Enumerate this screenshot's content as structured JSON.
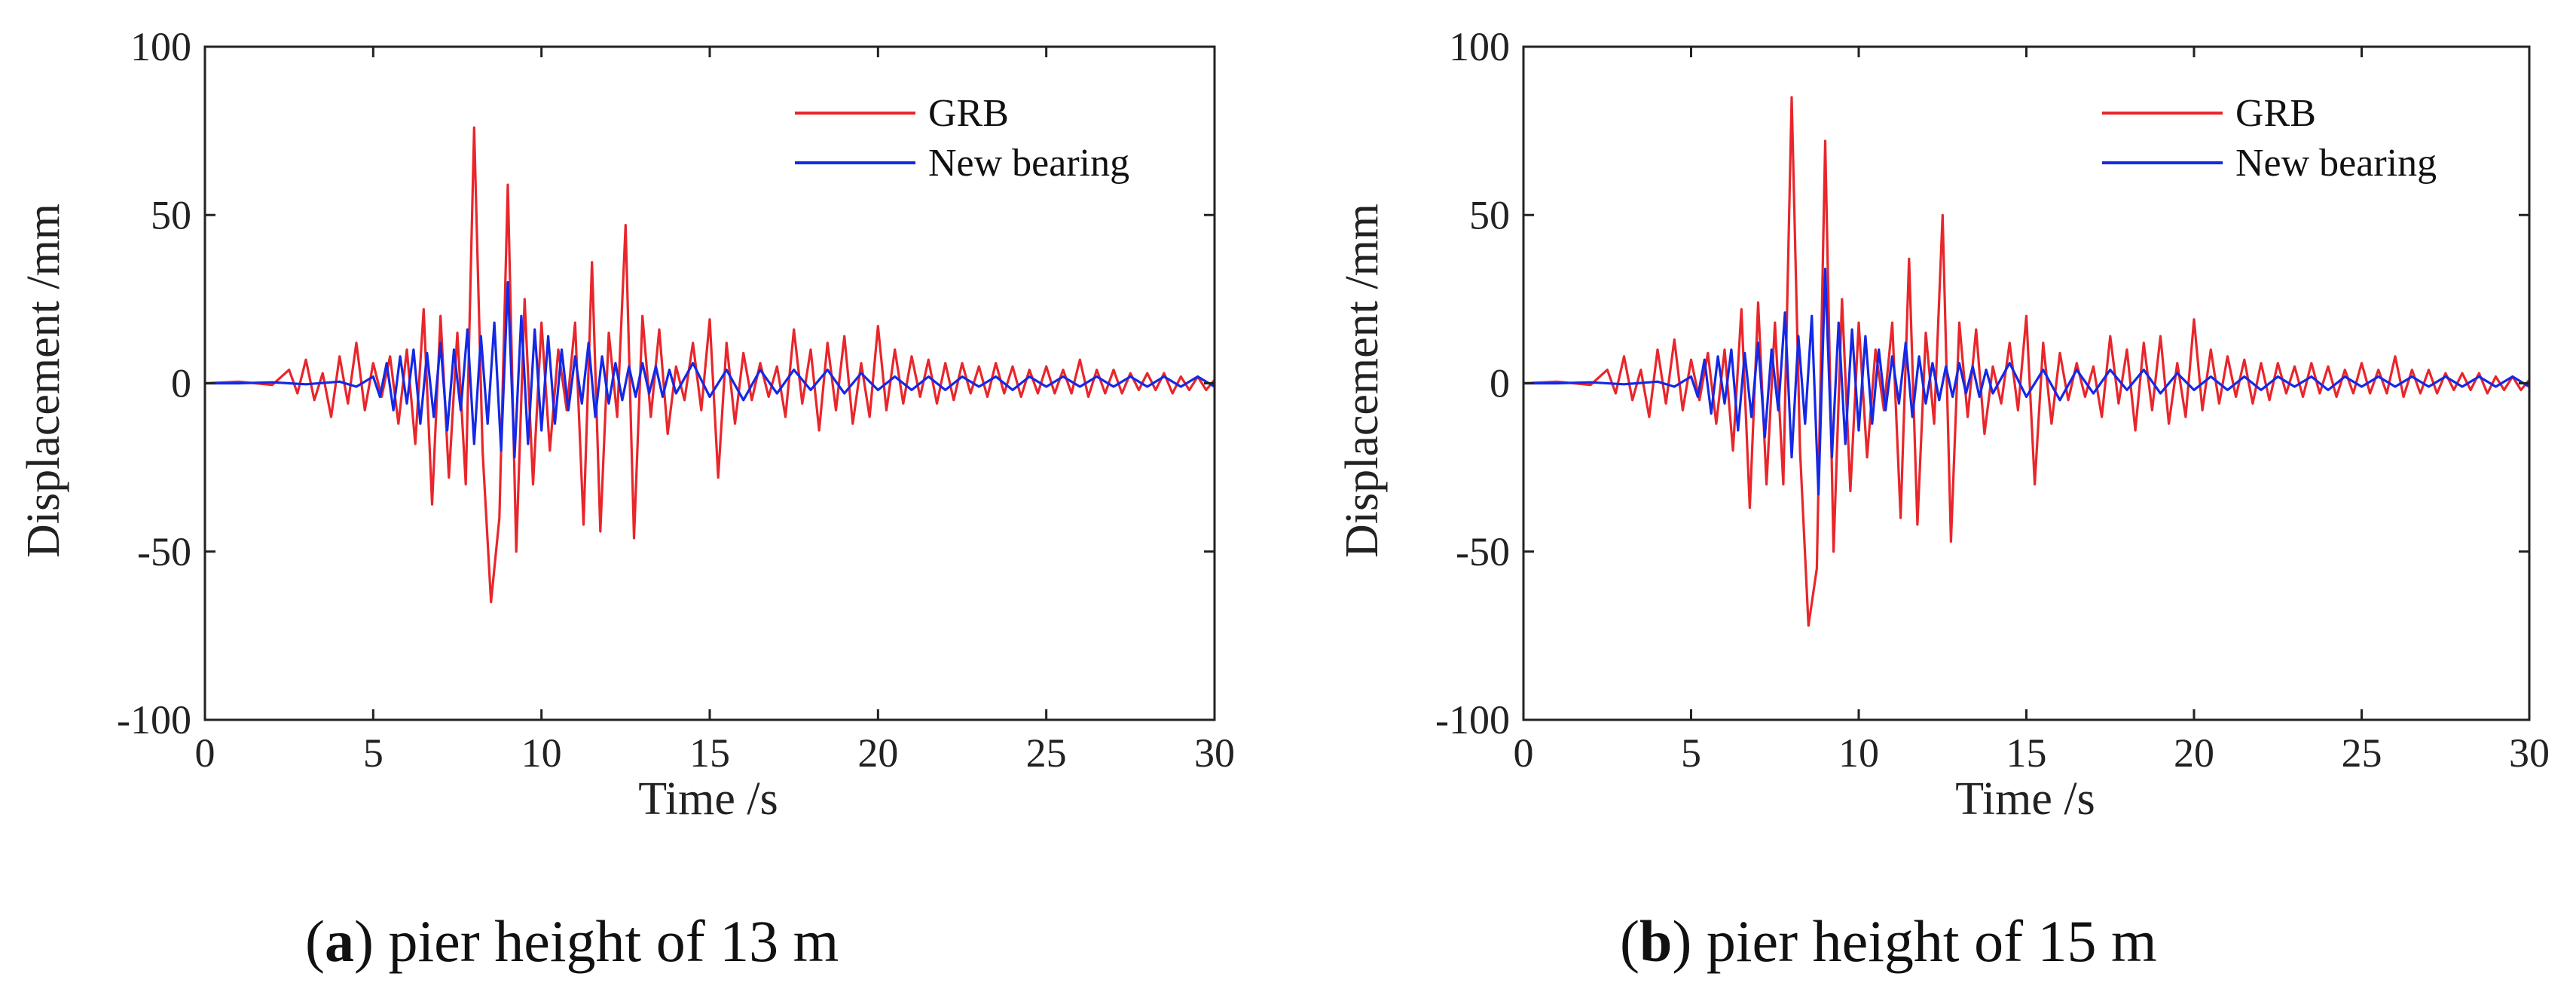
{
  "chart_data": [
    {
      "type": "line",
      "panel": "a",
      "caption_letter": "a",
      "caption_text": "pier height of 13 m",
      "xlabel": "Time /s",
      "ylabel": "Displacement /mm",
      "xlim": [
        0,
        30
      ],
      "ylim": [
        -100,
        100
      ],
      "xticks": [
        0,
        5,
        10,
        15,
        20,
        25,
        30
      ],
      "yticks": [
        100,
        50,
        0,
        -50,
        -100
      ],
      "xtick_labels": [
        "0",
        "5",
        "10",
        "15",
        "20",
        "25",
        "30"
      ],
      "ytick_labels": [
        "100",
        "50",
        "0",
        "-50",
        "-100"
      ],
      "legend_position": "top-right",
      "series": [
        {
          "name": "GRB",
          "color": "#e8262b",
          "x": [
            0,
            1,
            2,
            2.5,
            2.75,
            3.0,
            3.25,
            3.5,
            3.75,
            4.0,
            4.25,
            4.5,
            4.75,
            5.0,
            5.25,
            5.5,
            5.75,
            6.0,
            6.25,
            6.5,
            6.75,
            7.0,
            7.25,
            7.5,
            7.75,
            8.0,
            8.25,
            8.5,
            8.75,
            9.0,
            9.25,
            9.5,
            9.75,
            10.0,
            10.25,
            10.5,
            10.75,
            11.0,
            11.25,
            11.5,
            11.75,
            12.0,
            12.25,
            12.5,
            12.75,
            13.0,
            13.25,
            13.5,
            13.75,
            14.0,
            14.25,
            14.5,
            14.75,
            15.0,
            15.25,
            15.5,
            15.75,
            16.0,
            16.25,
            16.5,
            16.75,
            17.0,
            17.25,
            17.5,
            17.75,
            18.0,
            18.25,
            18.5,
            18.75,
            19.0,
            19.25,
            19.5,
            19.75,
            20.0,
            20.25,
            20.5,
            20.75,
            21.0,
            21.25,
            21.5,
            21.75,
            22.0,
            22.25,
            22.5,
            22.75,
            23.0,
            23.25,
            23.5,
            23.75,
            24.0,
            24.25,
            24.5,
            24.75,
            25.0,
            25.25,
            25.5,
            25.75,
            26.0,
            26.25,
            26.5,
            26.75,
            27.0,
            27.25,
            27.5,
            27.75,
            28.0,
            28.25,
            28.5,
            28.75,
            29.0,
            29.25,
            29.5,
            29.75,
            30.0
          ],
          "y": [
            0,
            0.5,
            -0.5,
            4,
            -3,
            7,
            -5,
            3,
            -10,
            8,
            -6,
            12,
            -8,
            6,
            -4,
            8,
            -12,
            10,
            -18,
            22,
            -36,
            20,
            -28,
            15,
            -30,
            76,
            -20,
            -65,
            -40,
            59,
            -50,
            25,
            -30,
            18,
            -20,
            10,
            -8,
            18,
            -42,
            36,
            -44,
            15,
            -10,
            47,
            -46,
            20,
            -10,
            16,
            -15,
            5,
            -5,
            12,
            -8,
            19,
            -28,
            12,
            -12,
            9,
            -5,
            6,
            -4,
            5,
            -10,
            16,
            -6,
            10,
            -14,
            12,
            -8,
            14,
            -12,
            6,
            -10,
            17,
            -8,
            10,
            -6,
            8,
            -4,
            7,
            -6,
            6,
            -5,
            6,
            -3,
            5,
            -4,
            6,
            -3,
            5,
            -4,
            4,
            -3,
            5,
            -3,
            4,
            -3,
            7,
            -4,
            4,
            -3,
            4,
            -3,
            3,
            -2,
            3,
            -2,
            3,
            -3,
            2,
            -2,
            2,
            -2,
            1
          ]
        },
        {
          "name": "New bearing",
          "color": "#1428e6",
          "x": [
            0,
            1,
            2,
            3,
            4,
            4.5,
            5.0,
            5.2,
            5.4,
            5.6,
            5.8,
            6.0,
            6.2,
            6.4,
            6.6,
            6.8,
            7.0,
            7.2,
            7.4,
            7.6,
            7.8,
            8.0,
            8.2,
            8.4,
            8.6,
            8.8,
            9.0,
            9.2,
            9.4,
            9.6,
            9.8,
            10.0,
            10.2,
            10.4,
            10.6,
            10.8,
            11.0,
            11.2,
            11.4,
            11.6,
            11.8,
            12.0,
            12.2,
            12.4,
            12.6,
            12.8,
            13.0,
            13.2,
            13.4,
            13.6,
            13.8,
            14.0,
            14.5,
            15.0,
            15.5,
            16.0,
            16.5,
            17.0,
            17.5,
            18.0,
            18.5,
            19.0,
            19.5,
            20.0,
            20.5,
            21.0,
            21.5,
            22.0,
            22.5,
            23.0,
            23.5,
            24.0,
            24.5,
            25.0,
            25.5,
            26.0,
            26.5,
            27.0,
            27.5,
            28.0,
            28.5,
            29.0,
            29.5,
            30.0
          ],
          "y": [
            0,
            0,
            0.3,
            -0.3,
            0.5,
            -1,
            2,
            -4,
            6,
            -8,
            8,
            -6,
            10,
            -12,
            9,
            -10,
            12,
            -14,
            10,
            -8,
            16,
            -18,
            14,
            -12,
            18,
            -20,
            30,
            -22,
            20,
            -18,
            16,
            -14,
            14,
            -12,
            10,
            -8,
            8,
            -6,
            12,
            -10,
            8,
            -6,
            6,
            -5,
            5,
            -4,
            6,
            -3,
            5,
            -4,
            4,
            -3,
            6,
            -4,
            4,
            -5,
            4,
            -3,
            4,
            -2,
            4,
            -3,
            3,
            -2,
            2,
            -2,
            2,
            -2,
            2,
            -1,
            2,
            -2,
            2,
            -1,
            2,
            -1,
            2,
            -1,
            2,
            -1,
            2,
            -1,
            2,
            -1
          ]
        }
      ]
    },
    {
      "type": "line",
      "panel": "b",
      "caption_letter": "b",
      "caption_text": "pier height of 15 m",
      "xlabel": "Time /s",
      "ylabel": "Displacement /mm",
      "xlim": [
        0,
        30
      ],
      "ylim": [
        -100,
        100
      ],
      "xticks": [
        0,
        5,
        10,
        15,
        20,
        25,
        30
      ],
      "yticks": [
        100,
        50,
        0,
        -50,
        -100
      ],
      "xtick_labels": [
        "0",
        "5",
        "10",
        "15",
        "20",
        "25",
        "30"
      ],
      "ytick_labels": [
        "100",
        "50",
        "0",
        "-50",
        "-100"
      ],
      "legend_position": "top-right",
      "series": [
        {
          "name": "GRB",
          "color": "#e8262b",
          "x": [
            0,
            1,
            2,
            2.5,
            2.75,
            3.0,
            3.25,
            3.5,
            3.75,
            4.0,
            4.25,
            4.5,
            4.75,
            5.0,
            5.25,
            5.5,
            5.75,
            6.0,
            6.25,
            6.5,
            6.75,
            7.0,
            7.25,
            7.5,
            7.75,
            8.0,
            8.25,
            8.5,
            8.75,
            9.0,
            9.25,
            9.5,
            9.75,
            10.0,
            10.25,
            10.5,
            10.75,
            11.0,
            11.25,
            11.5,
            11.75,
            12.0,
            12.25,
            12.5,
            12.75,
            13.0,
            13.25,
            13.5,
            13.75,
            14.0,
            14.25,
            14.5,
            14.75,
            15.0,
            15.25,
            15.5,
            15.75,
            16.0,
            16.25,
            16.5,
            16.75,
            17.0,
            17.25,
            17.5,
            17.75,
            18.0,
            18.25,
            18.5,
            18.75,
            19.0,
            19.25,
            19.5,
            19.75,
            20.0,
            20.25,
            20.5,
            20.75,
            21.0,
            21.25,
            21.5,
            21.75,
            22.0,
            22.25,
            22.5,
            22.75,
            23.0,
            23.25,
            23.5,
            23.75,
            24.0,
            24.25,
            24.5,
            24.75,
            25.0,
            25.25,
            25.5,
            25.75,
            26.0,
            26.25,
            26.5,
            26.75,
            27.0,
            27.25,
            27.5,
            27.75,
            28.0,
            28.25,
            28.5,
            28.75,
            29.0,
            29.25,
            29.5,
            29.75,
            30.0
          ],
          "y": [
            0,
            0.5,
            -0.5,
            4,
            -3,
            8,
            -5,
            4,
            -10,
            10,
            -6,
            13,
            -8,
            7,
            -5,
            9,
            -12,
            10,
            -20,
            22,
            -37,
            24,
            -30,
            18,
            -30,
            85,
            -20,
            -72,
            -55,
            72,
            -50,
            25,
            -32,
            18,
            -22,
            10,
            -8,
            18,
            -40,
            37,
            -42,
            15,
            -12,
            50,
            -47,
            18,
            -10,
            16,
            -15,
            5,
            -6,
            12,
            -8,
            20,
            -30,
            12,
            -12,
            9,
            -5,
            6,
            -4,
            5,
            -10,
            14,
            -6,
            10,
            -14,
            12,
            -8,
            14,
            -12,
            6,
            -10,
            19,
            -8,
            10,
            -6,
            8,
            -4,
            7,
            -6,
            6,
            -5,
            6,
            -3,
            5,
            -4,
            6,
            -3,
            5,
            -4,
            4,
            -3,
            6,
            -3,
            4,
            -3,
            8,
            -4,
            4,
            -3,
            4,
            -3,
            3,
            -2,
            3,
            -2,
            3,
            -3,
            2,
            -2,
            2,
            -2,
            1
          ]
        },
        {
          "name": "New bearing",
          "color": "#1428e6",
          "x": [
            0,
            1,
            2,
            3,
            4,
            4.5,
            5.0,
            5.2,
            5.4,
            5.6,
            5.8,
            6.0,
            6.2,
            6.4,
            6.6,
            6.8,
            7.0,
            7.2,
            7.4,
            7.6,
            7.8,
            8.0,
            8.2,
            8.4,
            8.6,
            8.8,
            9.0,
            9.2,
            9.4,
            9.6,
            9.8,
            10.0,
            10.2,
            10.4,
            10.6,
            10.8,
            11.0,
            11.2,
            11.4,
            11.6,
            11.8,
            12.0,
            12.2,
            12.4,
            12.6,
            12.8,
            13.0,
            13.2,
            13.4,
            13.6,
            13.8,
            14.0,
            14.5,
            15.0,
            15.5,
            16.0,
            16.5,
            17.0,
            17.5,
            18.0,
            18.5,
            19.0,
            19.5,
            20.0,
            20.5,
            21.0,
            21.5,
            22.0,
            22.5,
            23.0,
            23.5,
            24.0,
            24.5,
            25.0,
            25.5,
            26.0,
            26.5,
            27.0,
            27.5,
            28.0,
            28.5,
            29.0,
            29.5,
            30.0
          ],
          "y": [
            0,
            0,
            0.3,
            -0.3,
            0.5,
            -1,
            2,
            -4,
            7,
            -9,
            8,
            -6,
            10,
            -14,
            9,
            -10,
            12,
            -16,
            10,
            -8,
            21,
            -22,
            14,
            -12,
            20,
            -33,
            34,
            -22,
            18,
            -18,
            16,
            -14,
            14,
            -12,
            10,
            -8,
            8,
            -6,
            12,
            -10,
            8,
            -6,
            6,
            -5,
            5,
            -4,
            6,
            -3,
            5,
            -4,
            4,
            -3,
            6,
            -4,
            4,
            -5,
            4,
            -3,
            4,
            -2,
            4,
            -3,
            3,
            -2,
            2,
            -2,
            2,
            -2,
            2,
            -1,
            2,
            -2,
            2,
            -1,
            2,
            -1,
            2,
            -1,
            2,
            -1,
            2,
            -1,
            2,
            -1
          ]
        }
      ]
    }
  ]
}
